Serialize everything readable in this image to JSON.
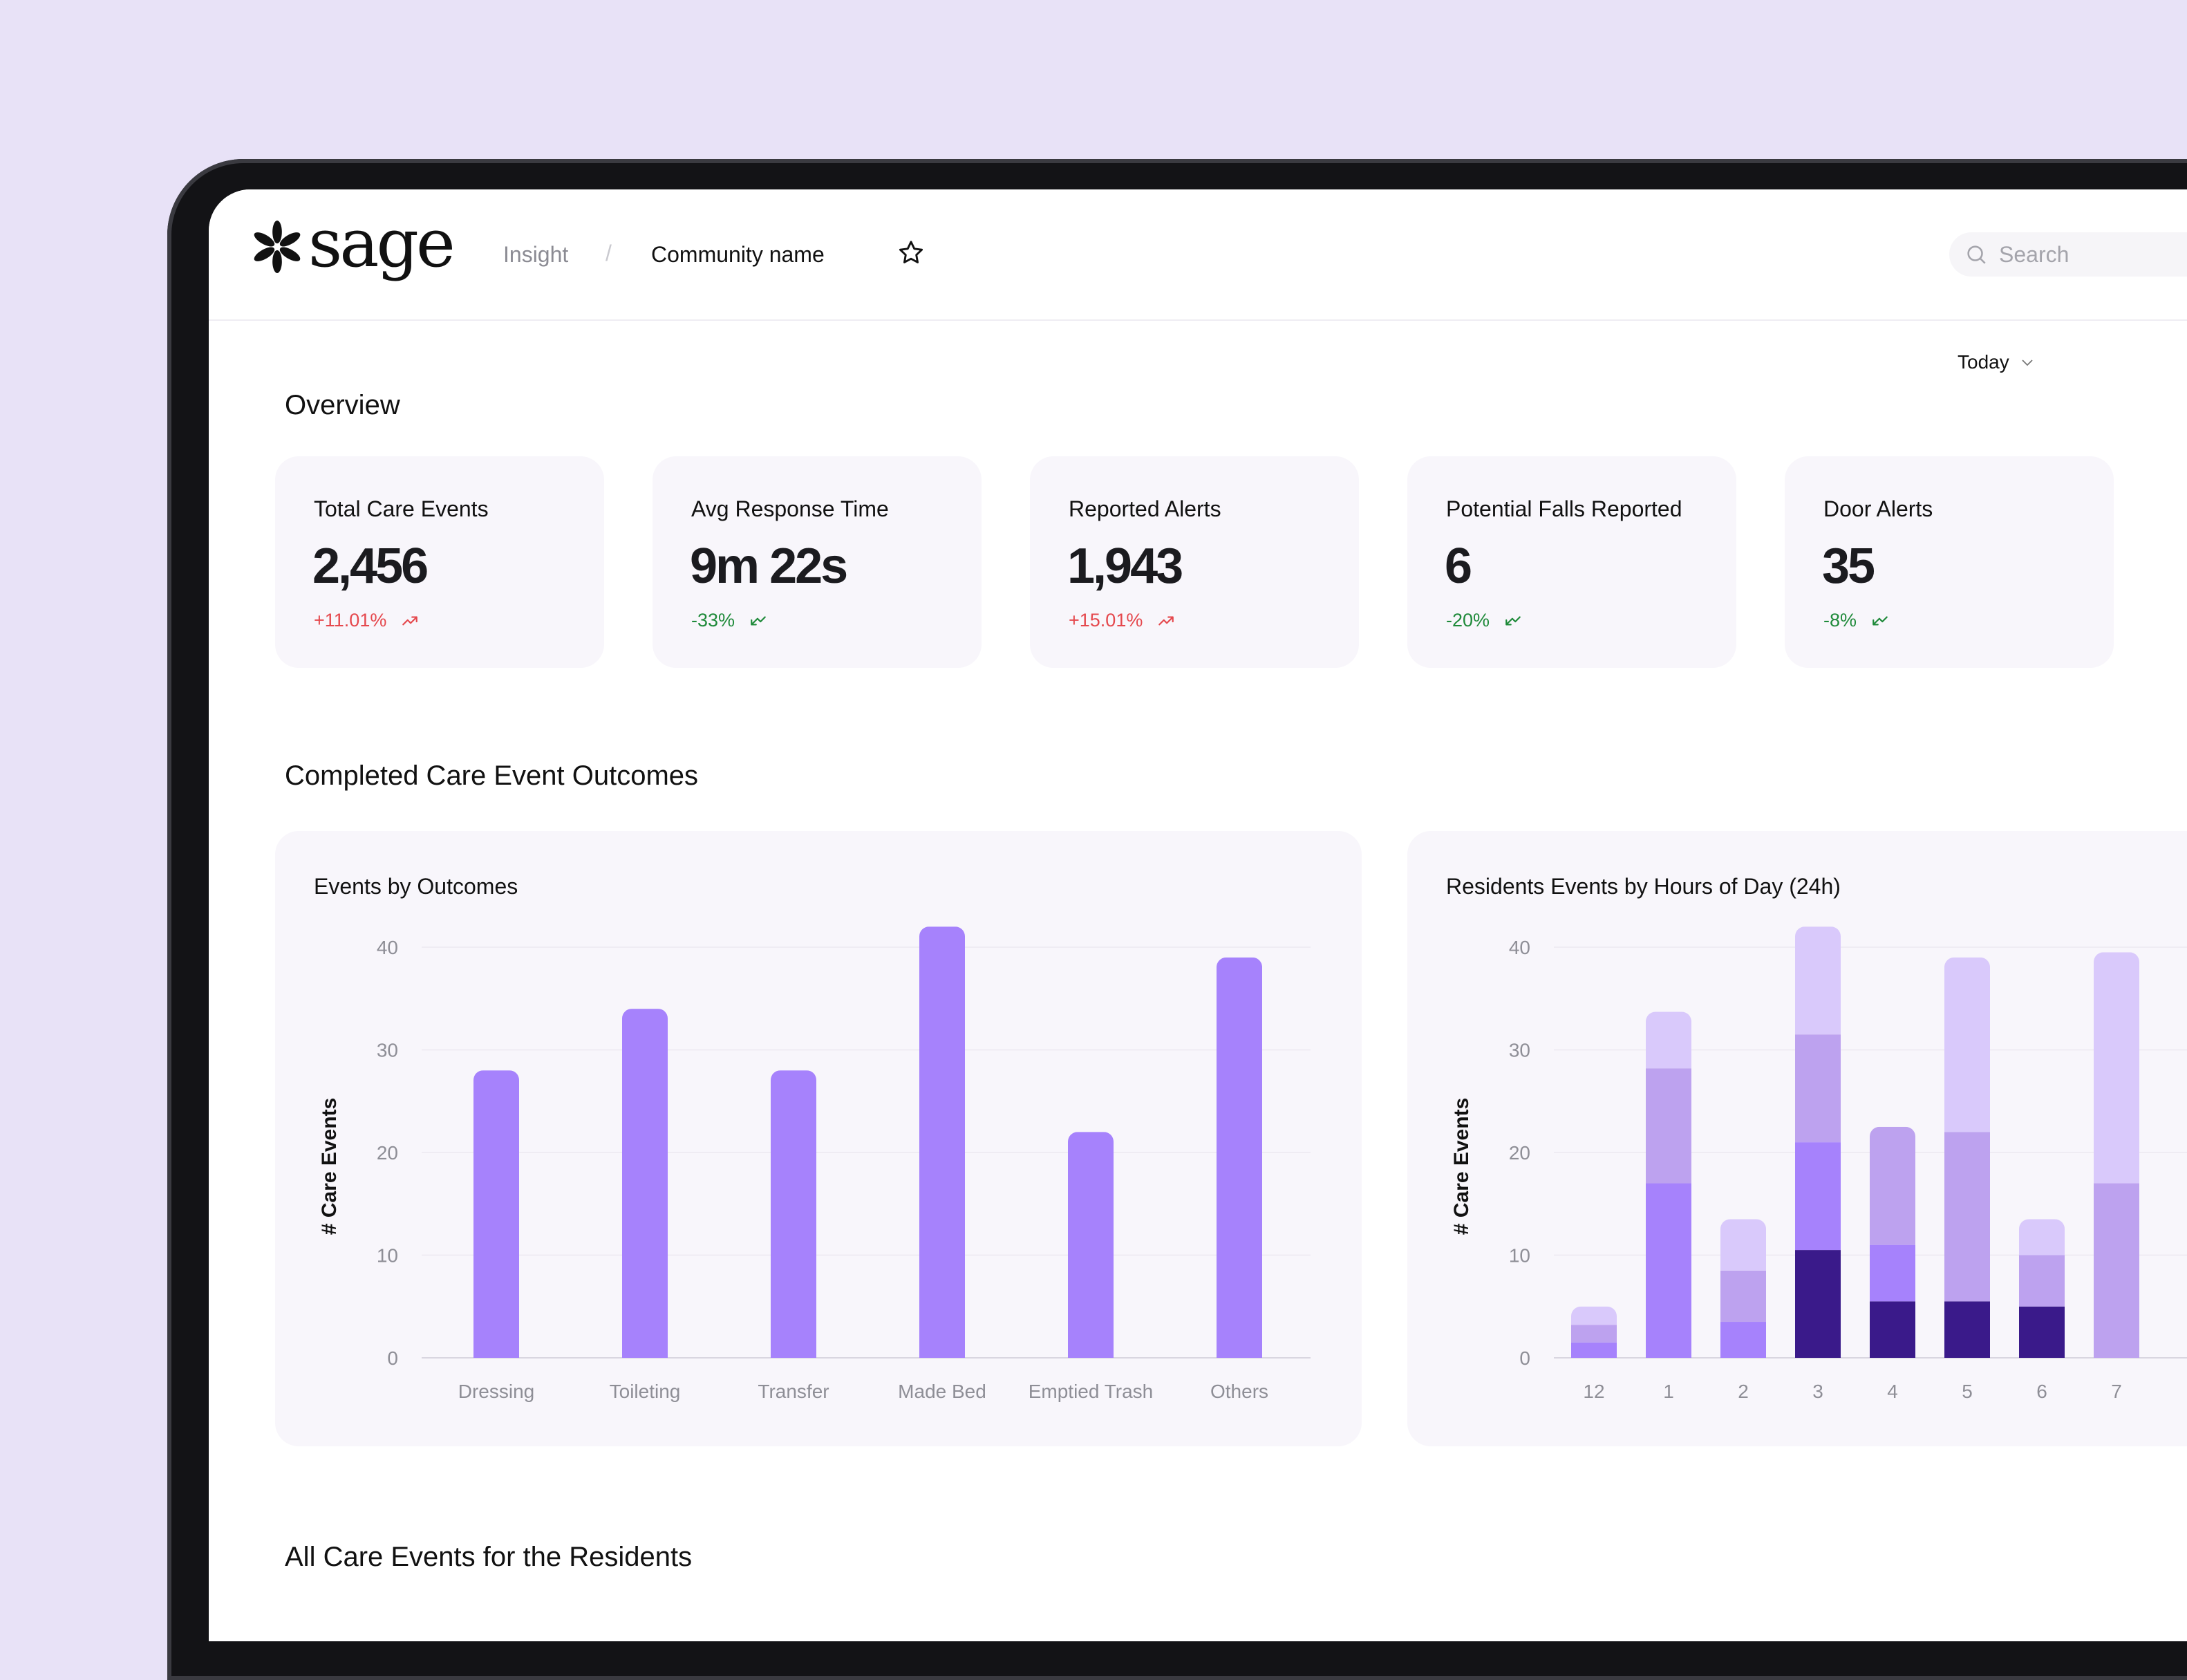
{
  "app": {
    "brand": "sage",
    "breadcrumb": {
      "section": "Insight",
      "separator": "/",
      "page": "Community name"
    },
    "search": {
      "placeholder": "Search"
    }
  },
  "filters": {
    "period": "Today"
  },
  "overview": {
    "title": "Overview",
    "cards": [
      {
        "label": "Total Care Events",
        "value": "2,456",
        "delta": "+11.01%",
        "trend": "up",
        "color": "#e5484d"
      },
      {
        "label": "Avg Response Time",
        "value": "9m 22s",
        "delta": "-33%",
        "trend": "down",
        "color": "#1f8a3a"
      },
      {
        "label": "Reported Alerts",
        "value": "1,943",
        "delta": "+15.01%",
        "trend": "up",
        "color": "#e5484d"
      },
      {
        "label": "Potential Falls Reported",
        "value": "6",
        "delta": "-20%",
        "trend": "down",
        "color": "#1f8a3a"
      },
      {
        "label": "Door Alerts",
        "value": "35",
        "delta": "-8%",
        "trend": "down",
        "color": "#1f8a3a"
      }
    ]
  },
  "outcomes": {
    "title": "Completed Care Event Outcomes"
  },
  "residents_section": {
    "title": "All Care Events for the Residents"
  },
  "chart_data": [
    {
      "type": "bar",
      "title": "Events by Outcomes",
      "ylabel": "# Care Events",
      "xlabel": "",
      "ylim": [
        0,
        40
      ],
      "yticks": [
        0,
        10,
        20,
        30,
        40
      ],
      "grid": true,
      "color": "#a682fc",
      "categories": [
        "Dressing",
        "Toileting",
        "Transfer",
        "Made Bed",
        "Emptied Trash",
        "Others"
      ],
      "values": [
        28,
        34,
        28,
        42,
        22,
        39
      ]
    },
    {
      "type": "bar",
      "stacked": true,
      "title": "Residents Events by Hours of Day (24h)",
      "ylabel": "# Care Events",
      "xlabel": "",
      "ylim": [
        0,
        40
      ],
      "yticks": [
        0,
        10,
        20,
        30,
        40
      ],
      "grid": true,
      "categories": [
        "12",
        "1",
        "2",
        "3",
        "4",
        "5",
        "6",
        "7"
      ],
      "series": [
        {
          "color": "#3a1a8a",
          "values": [
            0,
            0,
            0,
            10.5,
            5.5,
            5.5,
            5,
            0
          ]
        },
        {
          "color": "#a682fc",
          "values": [
            1.5,
            17,
            3.5,
            10.5,
            5.5,
            0,
            0,
            0
          ]
        },
        {
          "color": "#bda2ef",
          "values": [
            1.7,
            11.2,
            5,
            10.5,
            11.5,
            16.5,
            5,
            17
          ]
        },
        {
          "color": "#d9c9fb",
          "values": [
            1.8,
            5.5,
            5,
            10.5,
            0,
            17,
            3.5,
            22.5
          ]
        }
      ]
    }
  ]
}
